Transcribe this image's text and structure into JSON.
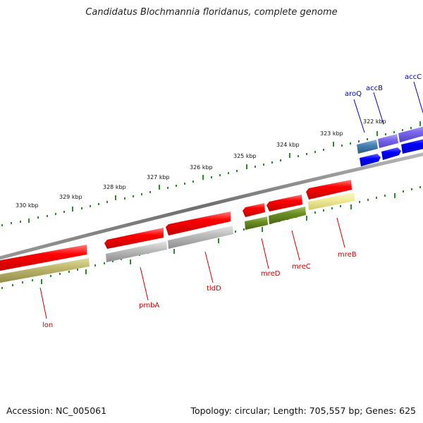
{
  "title": "Candidatus Blochmannia floridanus, complete genome",
  "footer": {
    "accession": "Accession: NC_005061",
    "topology": "Topology: circular; Length: 705,557 bp; Genes: 625"
  },
  "colors": {
    "backbone": "#7a7a7a",
    "tick": "#2e8b2e",
    "red_gene": "#ff0000",
    "olive_gene": "#bcb56a",
    "gray_gene": "#bdbdbd",
    "darkgreen_gene": "#6b8e23",
    "paleyellow_gene": "#f0ec98",
    "steelblue_gene": "#4682b4",
    "purple_gene": "#7b68ee",
    "blue_gene": "#0000ff",
    "red_label": "#cc0000",
    "blue_label": "#0000cc"
  },
  "scale_labels": [
    "330 kbp",
    "329 kbp",
    "328 kbp",
    "327 kbp",
    "326 kbp",
    "325 kbp",
    "324 kbp",
    "323 kbp",
    "322 kbp"
  ],
  "genes_bottom": [
    {
      "name": "lon",
      "color": "#cc0000"
    },
    {
      "name": "pmbA",
      "color": "#cc0000"
    },
    {
      "name": "tldD",
      "color": "#cc0000"
    },
    {
      "name": "mreD",
      "color": "#cc0000"
    },
    {
      "name": "mreC",
      "color": "#cc0000"
    },
    {
      "name": "mreB",
      "color": "#cc0000"
    }
  ],
  "genes_top": [
    {
      "name": "aroQ",
      "color": "#0000cc"
    },
    {
      "name": "accB",
      "color": "#0000cc"
    },
    {
      "name": "accC",
      "color": "#0000cc"
    }
  ]
}
